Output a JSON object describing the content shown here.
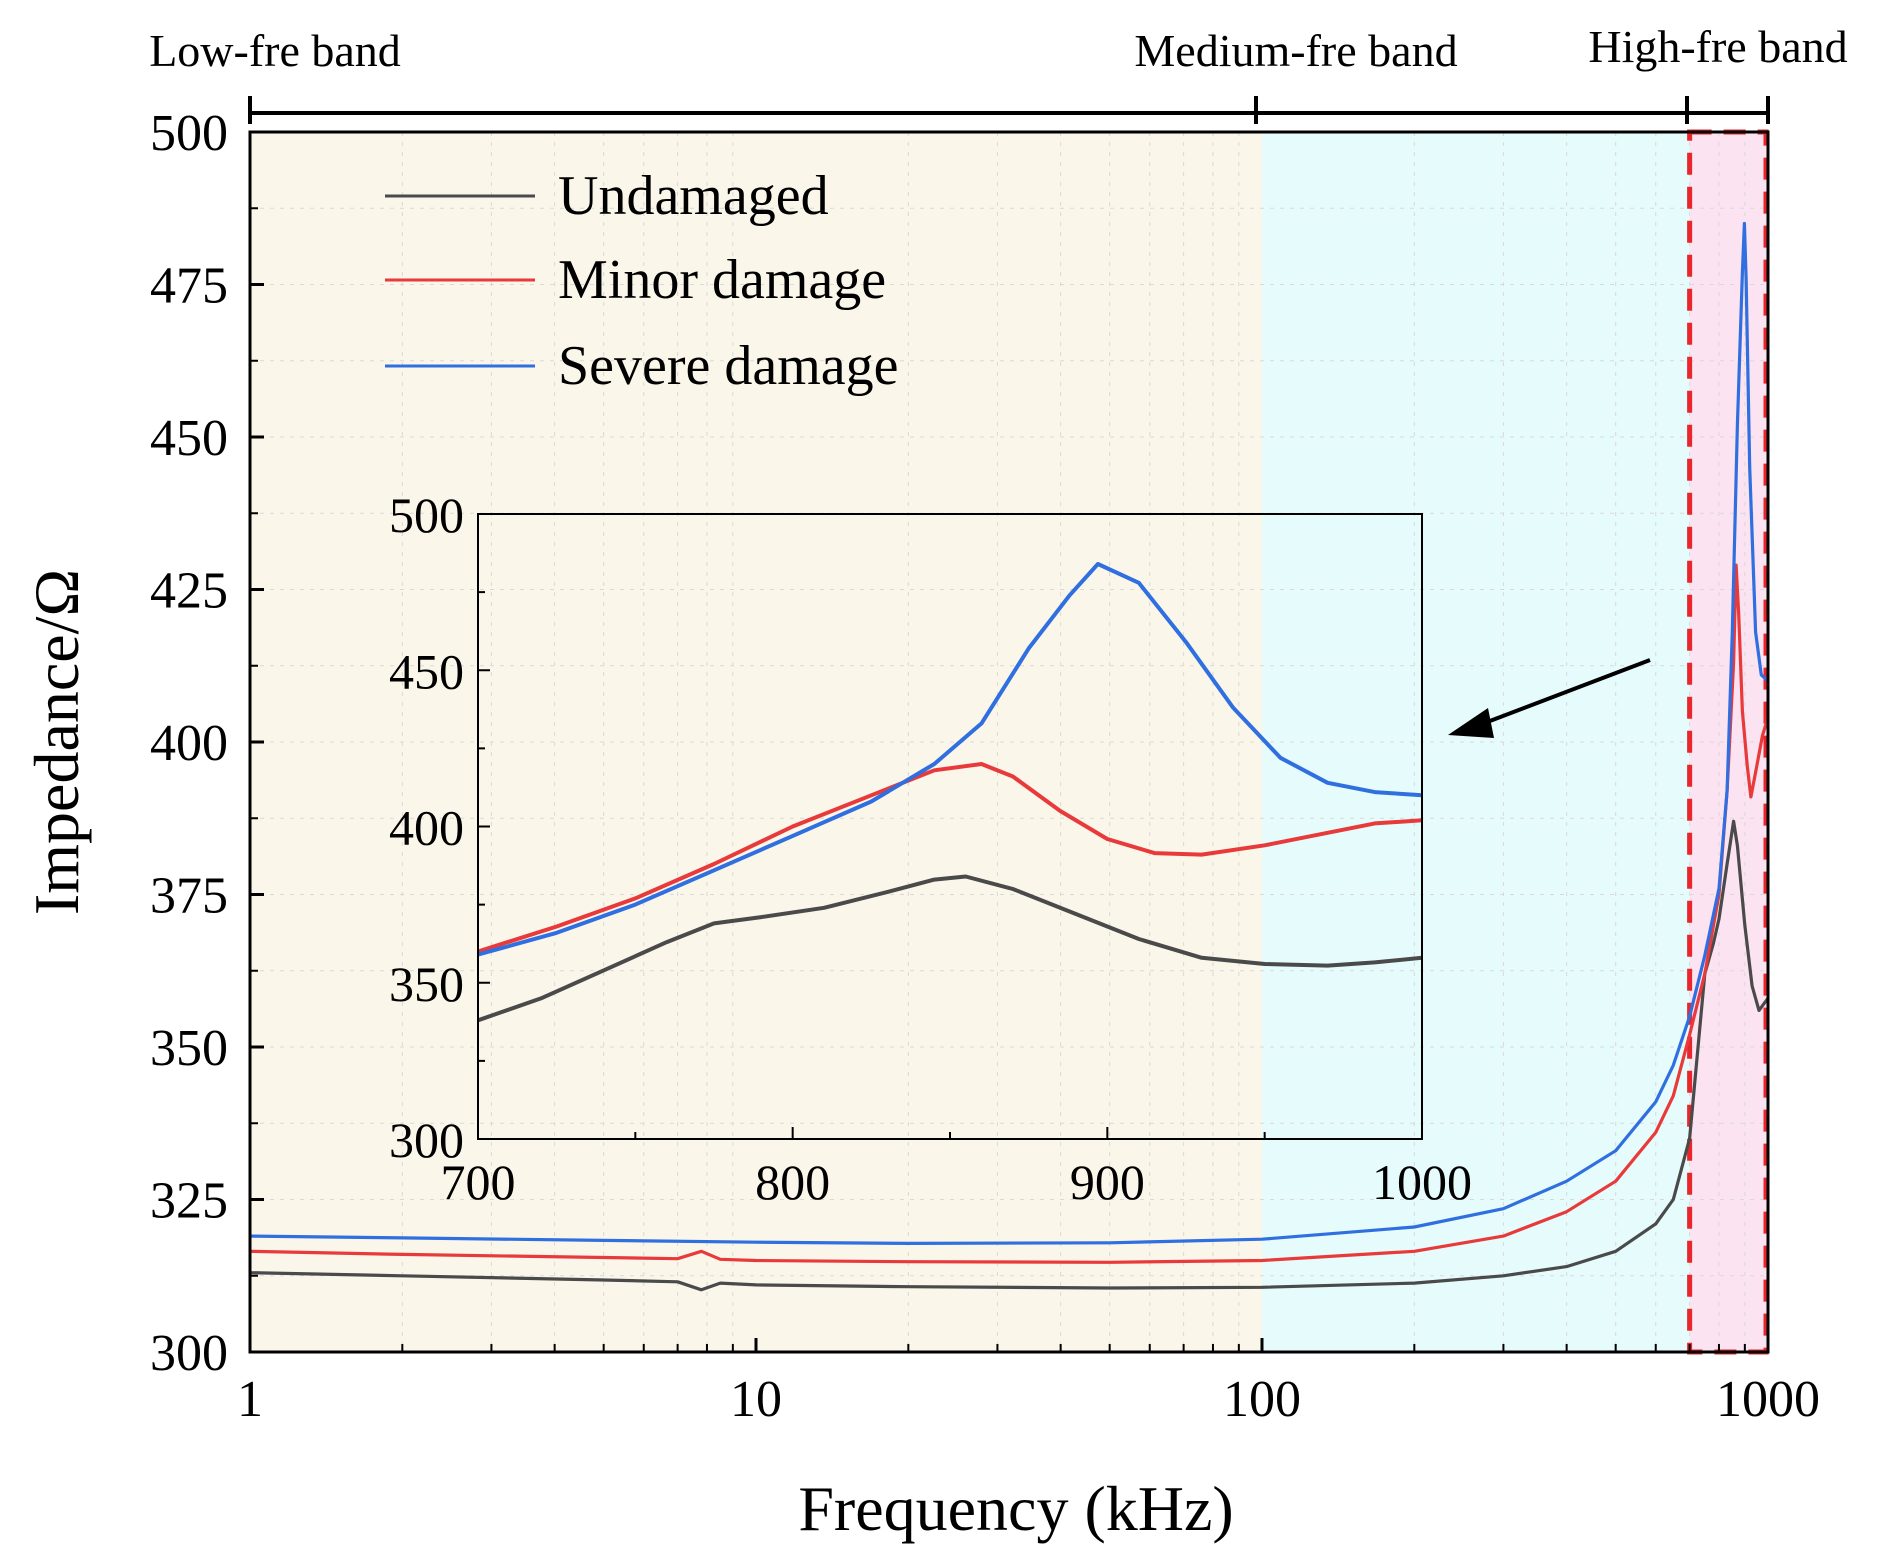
{
  "chart_data": [
    {
      "type": "line",
      "title": "",
      "xlabel": "Frequency (kHz)",
      "ylabel": "Impedance/Ω",
      "xscale": "log",
      "xlim": [
        1,
        1000
      ],
      "ylim": [
        300,
        500
      ],
      "xticks": [
        1,
        10,
        100,
        1000
      ],
      "yticks": [
        300,
        325,
        350,
        375,
        400,
        425,
        450,
        475,
        500
      ],
      "grid": true,
      "legend_position": "top-left",
      "bands": [
        {
          "label": "Low-fre band",
          "from": 1,
          "to": 100,
          "color": "#fbf6ea"
        },
        {
          "label": "Medium-fre band",
          "from": 100,
          "to": 700,
          "color": "#e6fbfb"
        },
        {
          "label": "High-fre band",
          "from": 700,
          "to": 1000,
          "color": "#fbe3f1"
        }
      ],
      "highlight_range": {
        "from": 700,
        "to": 1000,
        "color": "#e8262b"
      },
      "series": [
        {
          "name": "Undamaged",
          "color": "#4a4a4a",
          "points": [
            [
              1,
              313
            ],
            [
              2,
              312.5
            ],
            [
              5,
              311.8
            ],
            [
              7,
              311.5
            ],
            [
              7.8,
              310.2
            ],
            [
              8.5,
              311.3
            ],
            [
              10,
              311
            ],
            [
              20,
              310.7
            ],
            [
              50,
              310.5
            ],
            [
              100,
              310.6
            ],
            [
              200,
              311.3
            ],
            [
              300,
              312.5
            ],
            [
              400,
              314
            ],
            [
              500,
              316.5
            ],
            [
              600,
              321
            ],
            [
              650,
              325
            ],
            [
              700,
              335
            ],
            [
              750,
              362
            ],
            [
              780,
              367
            ],
            [
              800,
              371
            ],
            [
              830,
              380
            ],
            [
              855,
              387
            ],
            [
              870,
              383
            ],
            [
              900,
              370
            ],
            [
              930,
              360
            ],
            [
              960,
              356
            ],
            [
              1000,
              358
            ]
          ]
        },
        {
          "name": "Minor damage",
          "color": "#e83a3a",
          "points": [
            [
              1,
              316.5
            ],
            [
              2,
              316
            ],
            [
              5,
              315.5
            ],
            [
              7,
              315.3
            ],
            [
              7.8,
              316.5
            ],
            [
              8.5,
              315.2
            ],
            [
              10,
              315
            ],
            [
              20,
              314.8
            ],
            [
              50,
              314.7
            ],
            [
              100,
              315
            ],
            [
              200,
              316.5
            ],
            [
              300,
              319
            ],
            [
              400,
              323
            ],
            [
              500,
              328
            ],
            [
              600,
              336
            ],
            [
              650,
              342
            ],
            [
              700,
              352
            ],
            [
              750,
              362
            ],
            [
              800,
              375
            ],
            [
              830,
              392
            ],
            [
              855,
              413
            ],
            [
              865,
              429
            ],
            [
              875,
              421
            ],
            [
              890,
              405
            ],
            [
              910,
              396
            ],
            [
              925,
              391
            ],
            [
              950,
              396
            ],
            [
              975,
              401
            ],
            [
              1000,
              404
            ]
          ]
        },
        {
          "name": "Severe damage",
          "color": "#2f6fe0",
          "points": [
            [
              1,
              319
            ],
            [
              2,
              318.7
            ],
            [
              5,
              318.3
            ],
            [
              10,
              318
            ],
            [
              20,
              317.8
            ],
            [
              50,
              317.9
            ],
            [
              100,
              318.5
            ],
            [
              200,
              320.5
            ],
            [
              300,
              323.5
            ],
            [
              400,
              328
            ],
            [
              500,
              333
            ],
            [
              600,
              341
            ],
            [
              650,
              347
            ],
            [
              700,
              355
            ],
            [
              750,
              365
            ],
            [
              800,
              376
            ],
            [
              830,
              392
            ],
            [
              850,
              418
            ],
            [
              870,
              452
            ],
            [
              890,
              477
            ],
            [
              898,
              485
            ],
            [
              905,
              476
            ],
            [
              920,
              445
            ],
            [
              945,
              418
            ],
            [
              970,
              411
            ],
            [
              1000,
              410
            ]
          ]
        }
      ]
    },
    {
      "type": "line",
      "title": "",
      "xlabel": "",
      "ylabel": "",
      "xscale": "linear",
      "xlim": [
        700,
        1000
      ],
      "ylim": [
        300,
        500
      ],
      "xticks": [
        700,
        800,
        900,
        1000
      ],
      "yticks": [
        300,
        350,
        400,
        450,
        500
      ],
      "grid": false,
      "series": [
        {
          "name": "Undamaged",
          "color": "#4a4a4a",
          "points": [
            [
              700,
              338
            ],
            [
              720,
              345
            ],
            [
              740,
              354
            ],
            [
              760,
              363
            ],
            [
              775,
              369
            ],
            [
              790,
              371
            ],
            [
              810,
              374
            ],
            [
              830,
              379
            ],
            [
              845,
              383
            ],
            [
              855,
              384
            ],
            [
              870,
              380
            ],
            [
              890,
              372
            ],
            [
              910,
              364
            ],
            [
              930,
              358
            ],
            [
              950,
              356
            ],
            [
              970,
              355.5
            ],
            [
              985,
              356.5
            ],
            [
              1000,
              358
            ]
          ]
        },
        {
          "name": "Minor damage",
          "color": "#e83a3a",
          "points": [
            [
              700,
              360
            ],
            [
              725,
              368
            ],
            [
              750,
              377
            ],
            [
              775,
              388
            ],
            [
              800,
              400
            ],
            [
              825,
              410
            ],
            [
              845,
              418
            ],
            [
              860,
              420
            ],
            [
              870,
              416
            ],
            [
              885,
              405
            ],
            [
              900,
              396
            ],
            [
              915,
              391.5
            ],
            [
              930,
              391
            ],
            [
              950,
              394
            ],
            [
              970,
              398
            ],
            [
              985,
              401
            ],
            [
              1000,
              402
            ]
          ]
        },
        {
          "name": "Severe damage",
          "color": "#2f6fe0",
          "points": [
            [
              700,
              359
            ],
            [
              725,
              366
            ],
            [
              750,
              375
            ],
            [
              775,
              386
            ],
            [
              800,
              397
            ],
            [
              825,
              408
            ],
            [
              845,
              420
            ],
            [
              860,
              433
            ],
            [
              875,
              457
            ],
            [
              888,
              474
            ],
            [
              897,
              484
            ],
            [
              910,
              478
            ],
            [
              925,
              459
            ],
            [
              940,
              438
            ],
            [
              955,
              422
            ],
            [
              970,
              414
            ],
            [
              985,
              411
            ],
            [
              1000,
              410
            ]
          ]
        }
      ]
    }
  ]
}
